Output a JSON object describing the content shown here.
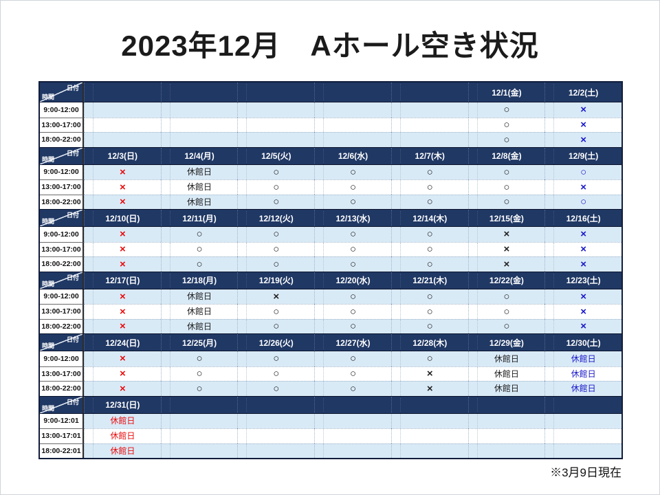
{
  "title": "2023年12月　Aホール空き状況",
  "footnote": "※3月9日現在",
  "corner": {
    "date_label": "日付",
    "time_label": "時間"
  },
  "colors": {
    "header_bg": "#203864",
    "row_blue": "#d9eaf7",
    "k": "#212121",
    "r": "#e80c0c",
    "b": "#1717c9"
  },
  "table": {
    "blocks": [
      {
        "dates": [
          "",
          "",
          "",
          "",
          "",
          "12/1(金)",
          "12/2(土)"
        ],
        "rows": [
          {
            "time": "9:00-12:00",
            "cells": [
              null,
              null,
              null,
              null,
              null,
              {
                "v": "○",
                "c": "k"
              },
              {
                "v": "×",
                "c": "b"
              }
            ]
          },
          {
            "time": "13:00-17:00",
            "cells": [
              null,
              null,
              null,
              null,
              null,
              {
                "v": "○",
                "c": "k"
              },
              {
                "v": "×",
                "c": "b"
              }
            ]
          },
          {
            "time": "18:00-22:00",
            "cells": [
              null,
              null,
              null,
              null,
              null,
              {
                "v": "○",
                "c": "k"
              },
              {
                "v": "×",
                "c": "b"
              }
            ]
          }
        ]
      },
      {
        "dates": [
          "12/3(日)",
          "12/4(月)",
          "12/5(火)",
          "12/6(水)",
          "12/7(木)",
          "12/8(金)",
          "12/9(土)"
        ],
        "rows": [
          {
            "time": "9:00-12:00",
            "cells": [
              {
                "v": "×",
                "c": "r"
              },
              {
                "v": "休館日",
                "c": "k"
              },
              {
                "v": "○",
                "c": "k"
              },
              {
                "v": "○",
                "c": "k"
              },
              {
                "v": "○",
                "c": "k"
              },
              {
                "v": "○",
                "c": "k"
              },
              {
                "v": "○",
                "c": "b"
              }
            ]
          },
          {
            "time": "13:00-17:00",
            "cells": [
              {
                "v": "×",
                "c": "r"
              },
              {
                "v": "休館日",
                "c": "k"
              },
              {
                "v": "○",
                "c": "k"
              },
              {
                "v": "○",
                "c": "k"
              },
              {
                "v": "○",
                "c": "k"
              },
              {
                "v": "○",
                "c": "k"
              },
              {
                "v": "×",
                "c": "b"
              }
            ]
          },
          {
            "time": "18:00-22:00",
            "cells": [
              {
                "v": "×",
                "c": "r"
              },
              {
                "v": "休館日",
                "c": "k"
              },
              {
                "v": "○",
                "c": "k"
              },
              {
                "v": "○",
                "c": "k"
              },
              {
                "v": "○",
                "c": "k"
              },
              {
                "v": "○",
                "c": "k"
              },
              {
                "v": "○",
                "c": "b"
              }
            ]
          }
        ]
      },
      {
        "dates": [
          "12/10(日)",
          "12/11(月)",
          "12/12(火)",
          "12/13(水)",
          "12/14(木)",
          "12/15(金)",
          "12/16(土)"
        ],
        "rows": [
          {
            "time": "9:00-12:00",
            "cells": [
              {
                "v": "×",
                "c": "r"
              },
              {
                "v": "○",
                "c": "k"
              },
              {
                "v": "○",
                "c": "k"
              },
              {
                "v": "○",
                "c": "k"
              },
              {
                "v": "○",
                "c": "k"
              },
              {
                "v": "×",
                "c": "k"
              },
              {
                "v": "×",
                "c": "b"
              }
            ]
          },
          {
            "time": "13:00-17:00",
            "cells": [
              {
                "v": "×",
                "c": "r"
              },
              {
                "v": "○",
                "c": "k"
              },
              {
                "v": "○",
                "c": "k"
              },
              {
                "v": "○",
                "c": "k"
              },
              {
                "v": "○",
                "c": "k"
              },
              {
                "v": "×",
                "c": "k"
              },
              {
                "v": "×",
                "c": "b"
              }
            ]
          },
          {
            "time": "18:00-22:00",
            "cells": [
              {
                "v": "×",
                "c": "r"
              },
              {
                "v": "○",
                "c": "k"
              },
              {
                "v": "○",
                "c": "k"
              },
              {
                "v": "○",
                "c": "k"
              },
              {
                "v": "○",
                "c": "k"
              },
              {
                "v": "×",
                "c": "k"
              },
              {
                "v": "×",
                "c": "b"
              }
            ]
          }
        ]
      },
      {
        "dates": [
          "12/17(日)",
          "12/18(月)",
          "12/19(火)",
          "12/20(水)",
          "12/21(木)",
          "12/22(金)",
          "12/23(土)"
        ],
        "rows": [
          {
            "time": "9:00-12:00",
            "cells": [
              {
                "v": "×",
                "c": "r"
              },
              {
                "v": "休館日",
                "c": "k"
              },
              {
                "v": "×",
                "c": "k"
              },
              {
                "v": "○",
                "c": "k"
              },
              {
                "v": "○",
                "c": "k"
              },
              {
                "v": "○",
                "c": "k"
              },
              {
                "v": "×",
                "c": "b"
              }
            ]
          },
          {
            "time": "13:00-17:00",
            "cells": [
              {
                "v": "×",
                "c": "r"
              },
              {
                "v": "休館日",
                "c": "k"
              },
              {
                "v": "○",
                "c": "k"
              },
              {
                "v": "○",
                "c": "k"
              },
              {
                "v": "○",
                "c": "k"
              },
              {
                "v": "○",
                "c": "k"
              },
              {
                "v": "×",
                "c": "b"
              }
            ]
          },
          {
            "time": "18:00-22:00",
            "cells": [
              {
                "v": "×",
                "c": "r"
              },
              {
                "v": "休館日",
                "c": "k"
              },
              {
                "v": "○",
                "c": "k"
              },
              {
                "v": "○",
                "c": "k"
              },
              {
                "v": "○",
                "c": "k"
              },
              {
                "v": "○",
                "c": "k"
              },
              {
                "v": "×",
                "c": "b"
              }
            ]
          }
        ]
      },
      {
        "dates": [
          "12/24(日)",
          "12/25(月)",
          "12/26(火)",
          "12/27(水)",
          "12/28(木)",
          "12/29(金)",
          "12/30(土)"
        ],
        "rows": [
          {
            "time": "9:00-12:00",
            "cells": [
              {
                "v": "×",
                "c": "r"
              },
              {
                "v": "○",
                "c": "k"
              },
              {
                "v": "○",
                "c": "k"
              },
              {
                "v": "○",
                "c": "k"
              },
              {
                "v": "○",
                "c": "k"
              },
              {
                "v": "休館日",
                "c": "k"
              },
              {
                "v": "休館日",
                "c": "b"
              }
            ]
          },
          {
            "time": "13:00-17:00",
            "cells": [
              {
                "v": "×",
                "c": "r"
              },
              {
                "v": "○",
                "c": "k"
              },
              {
                "v": "○",
                "c": "k"
              },
              {
                "v": "○",
                "c": "k"
              },
              {
                "v": "×",
                "c": "k"
              },
              {
                "v": "休館日",
                "c": "k"
              },
              {
                "v": "休館日",
                "c": "b"
              }
            ]
          },
          {
            "time": "18:00-22:00",
            "cells": [
              {
                "v": "×",
                "c": "r"
              },
              {
                "v": "○",
                "c": "k"
              },
              {
                "v": "○",
                "c": "k"
              },
              {
                "v": "○",
                "c": "k"
              },
              {
                "v": "×",
                "c": "k"
              },
              {
                "v": "休館日",
                "c": "k"
              },
              {
                "v": "休館日",
                "c": "b"
              }
            ]
          }
        ]
      },
      {
        "dates": [
          "12/31(日)",
          "",
          "",
          "",
          "",
          "",
          ""
        ],
        "rows": [
          {
            "time": "9:00-12:01",
            "cells": [
              {
                "v": "休館日",
                "c": "r"
              },
              null,
              null,
              null,
              null,
              null,
              null
            ]
          },
          {
            "time": "13:00-17:01",
            "cells": [
              {
                "v": "休館日",
                "c": "r"
              },
              null,
              null,
              null,
              null,
              null,
              null
            ]
          },
          {
            "time": "18:00-22:01",
            "cells": [
              {
                "v": "休館日",
                "c": "r"
              },
              null,
              null,
              null,
              null,
              null,
              null
            ]
          }
        ]
      }
    ]
  }
}
